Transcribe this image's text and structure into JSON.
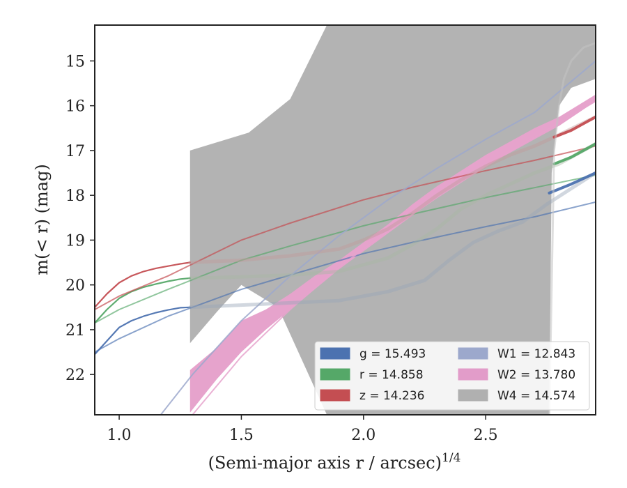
{
  "chart_data": {
    "type": "line",
    "xlabel": "(Semi-major axis r / arcsec)",
    "xlabel_exponent": "1/4",
    "ylabel": "m(< r) (mag)",
    "xlim": [
      0.9,
      2.95
    ],
    "ylim": [
      22.9,
      14.2
    ],
    "y_inverted": true,
    "xticks": [
      1.0,
      1.5,
      2.0,
      2.5
    ],
    "xtick_labels": [
      "1.0",
      "1.5",
      "2.0",
      "2.5"
    ],
    "yticks": [
      15,
      16,
      17,
      18,
      19,
      20,
      21,
      22
    ],
    "ytick_labels": [
      "15",
      "16",
      "17",
      "18",
      "19",
      "20",
      "21",
      "22"
    ],
    "grid": false,
    "legend_position": "lower-right",
    "legend": [
      {
        "key": "g",
        "label": "g = 15.493",
        "color": "#4c72b0"
      },
      {
        "key": "r",
        "label": "r = 14.858",
        "color": "#55a868"
      },
      {
        "key": "z",
        "label": "z = 14.236",
        "color": "#c44e52"
      },
      {
        "key": "W1",
        "label": "W1 = 12.843",
        "color": "#9ca8cc"
      },
      {
        "key": "W2",
        "label": "W2 = 13.780",
        "color": "#e29cc9"
      },
      {
        "key": "W4",
        "label": "W4 = 14.574",
        "color": "#b0b0b0"
      }
    ],
    "bands": [
      {
        "key": "W4",
        "color": "#b3b3b3",
        "upper": [
          [
            1.29,
            17.0
          ],
          [
            1.53,
            16.6
          ],
          [
            1.7,
            15.85
          ],
          [
            1.85,
            14.2
          ],
          [
            2.95,
            14.2
          ],
          [
            2.95,
            15.4
          ],
          [
            2.85,
            15.6
          ],
          [
            2.8,
            16.0
          ],
          [
            2.77,
            17.5
          ],
          [
            2.76,
            22.9
          ]
        ],
        "lower": [
          [
            1.29,
            21.3
          ],
          [
            1.4,
            20.6
          ],
          [
            1.5,
            20.0
          ],
          [
            1.65,
            20.5
          ],
          [
            1.85,
            22.9
          ]
        ]
      },
      {
        "key": "W2",
        "color": "#e6a3cc",
        "upper": [
          [
            1.29,
            21.9
          ],
          [
            1.4,
            21.4
          ],
          [
            1.5,
            20.8
          ],
          [
            1.6,
            20.55
          ],
          [
            1.7,
            20.2
          ],
          [
            1.8,
            19.8
          ],
          [
            1.9,
            19.45
          ],
          [
            2.0,
            19.05
          ],
          [
            2.1,
            18.65
          ],
          [
            2.2,
            18.2
          ],
          [
            2.3,
            17.8
          ],
          [
            2.4,
            17.45
          ],
          [
            2.5,
            17.1
          ],
          [
            2.6,
            16.8
          ],
          [
            2.7,
            16.5
          ],
          [
            2.8,
            16.25
          ],
          [
            2.95,
            15.75
          ]
        ],
        "lower": [
          [
            1.29,
            22.85
          ],
          [
            1.4,
            22.1
          ],
          [
            1.5,
            21.5
          ],
          [
            1.6,
            21.0
          ],
          [
            1.7,
            20.55
          ],
          [
            1.8,
            20.1
          ],
          [
            1.9,
            19.65
          ],
          [
            2.0,
            19.25
          ],
          [
            2.1,
            18.85
          ],
          [
            2.2,
            18.45
          ],
          [
            2.3,
            18.05
          ],
          [
            2.4,
            17.7
          ],
          [
            2.5,
            17.35
          ],
          [
            2.6,
            17.05
          ],
          [
            2.7,
            16.75
          ],
          [
            2.8,
            16.45
          ],
          [
            2.95,
            15.9
          ]
        ]
      }
    ],
    "series": [
      {
        "key": "g",
        "color": "#4c72b0",
        "width": 2.2,
        "opacity": 0.95,
        "x": [
          0.9,
          0.95,
          1.0,
          1.05,
          1.1,
          1.15,
          1.2,
          1.25,
          1.29
        ],
        "y": [
          21.55,
          21.25,
          20.95,
          20.8,
          20.7,
          20.62,
          20.56,
          20.51,
          20.5
        ]
      },
      {
        "key": "r",
        "color": "#55a868",
        "width": 2.2,
        "opacity": 0.95,
        "x": [
          0.9,
          0.95,
          1.0,
          1.05,
          1.1,
          1.15,
          1.2,
          1.25,
          1.29
        ],
        "y": [
          20.85,
          20.55,
          20.3,
          20.15,
          20.05,
          19.98,
          19.92,
          19.87,
          19.85
        ]
      },
      {
        "key": "z",
        "color": "#c44e52",
        "width": 2.2,
        "opacity": 0.95,
        "x": [
          0.9,
          0.95,
          1.0,
          1.05,
          1.1,
          1.15,
          1.2,
          1.25,
          1.29
        ],
        "y": [
          20.5,
          20.2,
          19.95,
          19.8,
          19.7,
          19.63,
          19.58,
          19.53,
          19.5
        ]
      },
      {
        "key": "g-model",
        "color": "#4c72b0",
        "width": 2.0,
        "opacity": 0.65,
        "x": [
          0.9,
          1.0,
          1.2,
          1.5,
          1.7,
          2.0,
          2.2,
          2.5,
          2.7,
          2.95
        ],
        "y": [
          21.5,
          21.2,
          20.7,
          20.1,
          19.78,
          19.3,
          19.05,
          18.7,
          18.48,
          18.15
        ]
      },
      {
        "key": "r-model",
        "color": "#55a868",
        "width": 2.0,
        "opacity": 0.65,
        "x": [
          0.9,
          1.0,
          1.2,
          1.5,
          1.7,
          2.0,
          2.2,
          2.5,
          2.7,
          2.95
        ],
        "y": [
          20.85,
          20.55,
          20.1,
          19.45,
          19.13,
          18.68,
          18.42,
          18.05,
          17.83,
          17.55
        ]
      },
      {
        "key": "z-model",
        "color": "#c44e52",
        "width": 2.0,
        "opacity": 0.7,
        "x": [
          0.9,
          1.0,
          1.2,
          1.5,
          1.7,
          2.0,
          2.2,
          2.5,
          2.7,
          2.95
        ],
        "y": [
          20.55,
          20.25,
          19.8,
          19.0,
          18.62,
          18.1,
          17.82,
          17.45,
          17.22,
          16.9
        ]
      },
      {
        "key": "W1-model",
        "color": "#9ca8cc",
        "width": 2.0,
        "opacity": 0.85,
        "x": [
          1.17,
          1.3,
          1.5,
          1.7,
          1.9,
          2.1,
          2.3,
          2.5,
          2.7,
          2.95
        ],
        "y": [
          22.9,
          22.0,
          20.8,
          19.8,
          18.9,
          18.1,
          17.4,
          16.75,
          16.15,
          15.0
        ]
      },
      {
        "key": "W2-model",
        "color": "#e6a3cc",
        "width": 2.0,
        "opacity": 0.85,
        "x": [
          1.3,
          1.5,
          1.7,
          1.9,
          2.1,
          2.3,
          2.5,
          2.7,
          2.95
        ],
        "y": [
          22.9,
          21.6,
          20.55,
          19.6,
          18.8,
          18.05,
          17.35,
          16.7,
          15.9
        ]
      },
      {
        "key": "g-data",
        "color": "#9aa6b8",
        "width": 5,
        "opacity": 0.45,
        "x": [
          1.29,
          1.5,
          1.7,
          1.9,
          2.1,
          2.25,
          2.35,
          2.45,
          2.55,
          2.65,
          2.75,
          2.85,
          2.95
        ],
        "y": [
          20.5,
          20.45,
          20.4,
          20.35,
          20.15,
          19.9,
          19.45,
          19.05,
          18.8,
          18.6,
          18.2,
          17.85,
          17.5
        ]
      },
      {
        "key": "g-data-end",
        "color": "#4c72b0",
        "width": 4,
        "opacity": 0.95,
        "x": [
          2.76,
          2.85,
          2.95
        ],
        "y": [
          17.95,
          17.75,
          17.5
        ]
      },
      {
        "key": "r-data",
        "color": "#a8b7a4",
        "width": 5,
        "opacity": 0.45,
        "x": [
          1.29,
          1.5,
          1.7,
          1.9,
          2.1,
          2.2,
          2.3,
          2.4,
          2.5,
          2.6,
          2.7,
          2.8,
          2.95
        ],
        "y": [
          19.85,
          19.82,
          19.78,
          19.7,
          19.4,
          19.1,
          18.75,
          18.3,
          18.0,
          17.75,
          17.5,
          17.3,
          16.85
        ]
      },
      {
        "key": "r-data-end",
        "color": "#55a868",
        "width": 4,
        "opacity": 0.95,
        "x": [
          2.78,
          2.85,
          2.95
        ],
        "y": [
          17.3,
          17.15,
          16.85
        ]
      },
      {
        "key": "z-data",
        "color": "#c29c9c",
        "width": 5,
        "opacity": 0.45,
        "x": [
          1.29,
          1.5,
          1.7,
          1.9,
          2.0,
          2.1,
          2.2,
          2.3,
          2.4,
          2.5,
          2.6,
          2.7,
          2.8,
          2.95
        ],
        "y": [
          19.5,
          19.45,
          19.35,
          19.2,
          19.0,
          18.75,
          18.4,
          18.0,
          17.65,
          17.35,
          17.1,
          16.9,
          16.65,
          16.25
        ]
      },
      {
        "key": "z-data-end",
        "color": "#c44e52",
        "width": 4,
        "opacity": 0.95,
        "x": [
          2.78,
          2.85,
          2.95
        ],
        "y": [
          16.7,
          16.55,
          16.25
        ]
      },
      {
        "key": "W4-data",
        "color": "#c2c2c2",
        "width": 3,
        "opacity": 0.55,
        "x": [
          2.76,
          2.77,
          2.78,
          2.8,
          2.82,
          2.85,
          2.9,
          2.95
        ],
        "y": [
          22.9,
          20.0,
          17.0,
          16.0,
          15.4,
          15.0,
          14.7,
          14.6
        ]
      }
    ]
  }
}
